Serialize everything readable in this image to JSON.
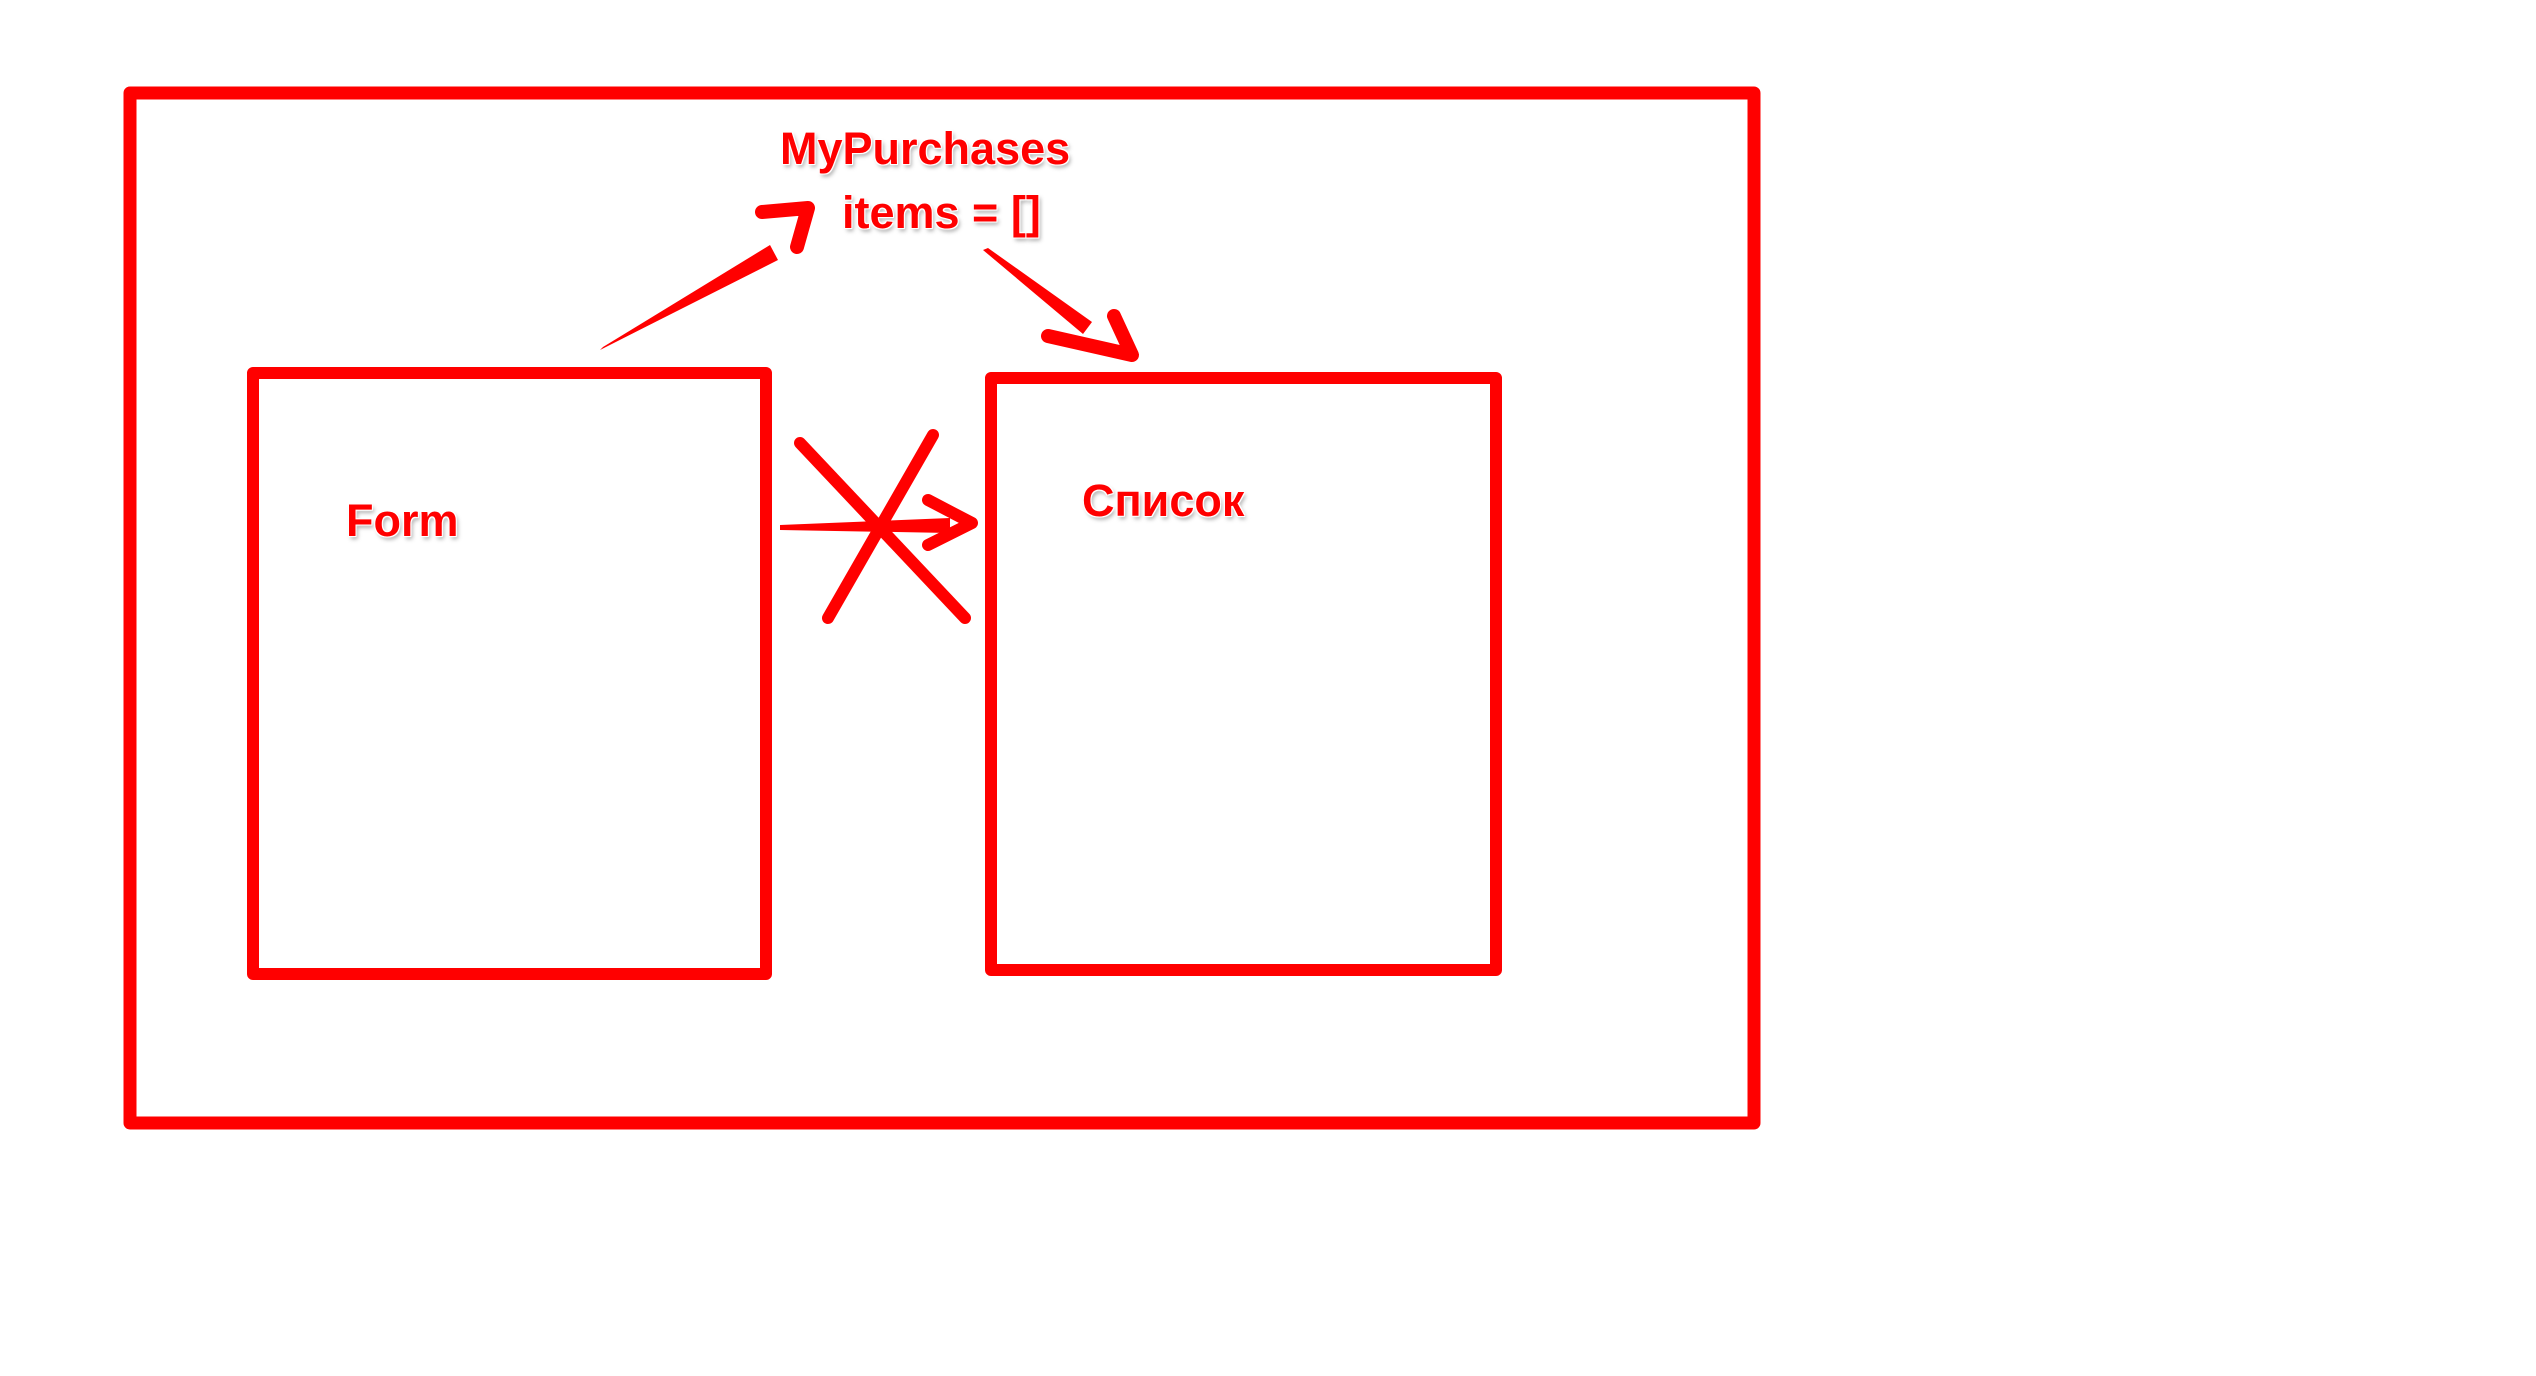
{
  "diagram": {
    "parent_label": "MyPurchases",
    "state_label": "items = []",
    "form_label": "Form",
    "list_label": "Список"
  },
  "colors": {
    "stroke": "#ff0000",
    "background": "#ffffff"
  }
}
